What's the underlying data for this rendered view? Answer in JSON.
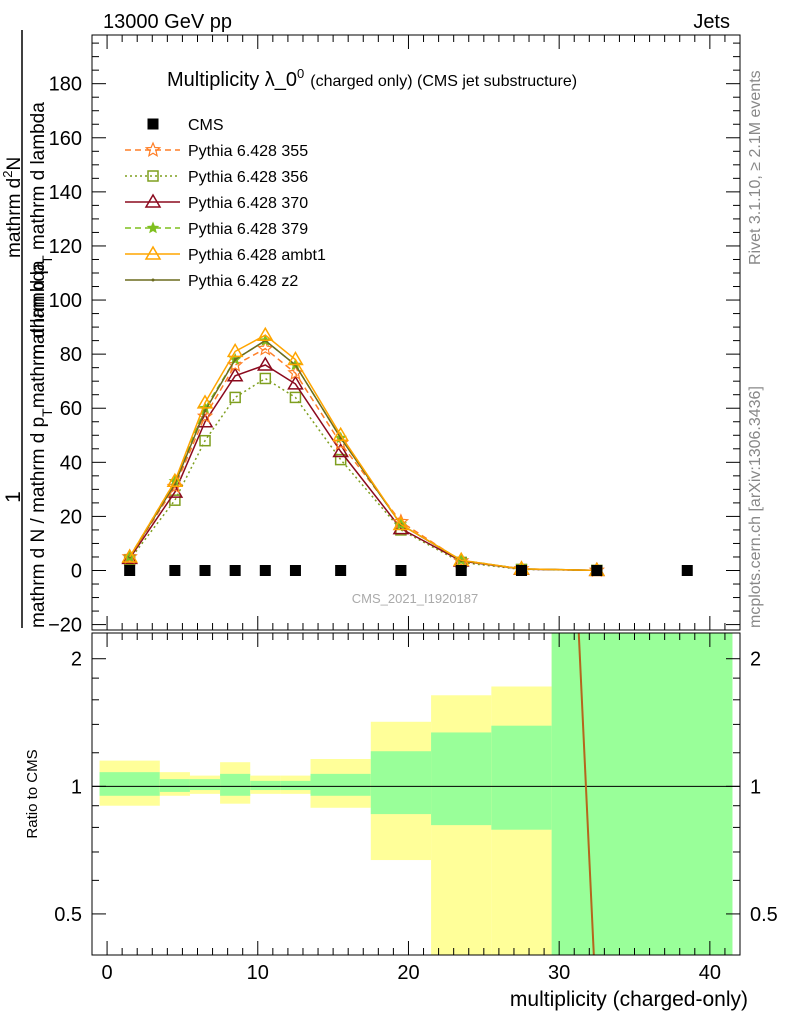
{
  "header": {
    "left": "13000 GeV pp",
    "right": "Jets"
  },
  "side_labels": {
    "rivet": "Rivet 3.1.10, ≥ 2.1M events",
    "mcplots": "mcplots.cern.ch [arXiv:1306.3436]"
  },
  "colors": {
    "cms": "#000000",
    "p355": "#ff7f27",
    "p356": "#7f9f1f",
    "p370": "#8b0a1e",
    "p379": "#7fbf1f",
    "ambt1": "#ffa500",
    "z2": "#6b6b1f",
    "band_yellow": "#ffff99",
    "band_green": "#99ff99"
  },
  "chart_data": [
    {
      "type": "line",
      "title": "Multiplicity λ_0",
      "title_sup": "0",
      "subtitle": "(charged only) (CMS jet substructure)",
      "ylabel_fraction_num": "1",
      "ylabel_fraction_den": "mathrm d N / mathrm d p",
      "ylabel_sub": "T",
      "ylabel_tail": "mathrm d lambda",
      "ylabel_num_extra": "mathrm d",
      "ylabel_num_sup": "2",
      "ylabel_num_N": "N",
      "ylabel_den2": "mathrm d p",
      "ylabel_den2_tail": " mathrm d lambda",
      "ylim": [
        -22,
        198
      ],
      "xlim": [
        -1,
        42
      ],
      "yticks": [
        -20,
        0,
        20,
        40,
        60,
        80,
        100,
        120,
        140,
        160,
        180
      ],
      "watermark": "CMS_2021_I1920187",
      "series": [
        {
          "name": "CMS",
          "x": [
            1.5,
            4.5,
            6.5,
            8.5,
            10.5,
            12.5,
            15.5,
            19.5,
            23.5,
            27.5,
            32.5,
            38.5
          ],
          "y": [
            0,
            0,
            0,
            0,
            0,
            0,
            0,
            0,
            0,
            0,
            0,
            0
          ]
        },
        {
          "name": "Pythia 6.428 355",
          "x": [
            1.5,
            4.5,
            6.5,
            8.5,
            10.5,
            12.5,
            15.5,
            19.5,
            23.5,
            27.5,
            32.5
          ],
          "y": [
            5,
            31,
            57,
            76,
            82,
            73,
            47,
            18,
            3.5,
            0.6,
            0.05
          ]
        },
        {
          "name": "Pythia 6.428 356",
          "x": [
            1.5,
            4.5,
            6.5,
            8.5,
            10.5,
            12.5,
            15.5,
            19.5,
            23.5,
            27.5,
            32.5
          ],
          "y": [
            4,
            26,
            48,
            64,
            71,
            64,
            41,
            15,
            3,
            0.4,
            0.05
          ]
        },
        {
          "name": "Pythia 6.428 370",
          "x": [
            1.5,
            4.5,
            6.5,
            8.5,
            10.5,
            12.5,
            15.5,
            19.5,
            23.5,
            27.5,
            32.5
          ],
          "y": [
            4.5,
            29,
            55,
            72,
            76,
            69,
            44,
            15.5,
            3.5,
            0.5,
            0.05
          ]
        },
        {
          "name": "Pythia 6.428 379",
          "x": [
            1.5,
            4.5,
            6.5,
            8.5,
            10.5,
            12.5,
            15.5,
            19.5,
            23.5,
            27.5,
            32.5
          ],
          "y": [
            5,
            33,
            60,
            78,
            85,
            76,
            49,
            17,
            3.8,
            0.6,
            0.05
          ]
        },
        {
          "name": "Pythia 6.428 ambt1",
          "x": [
            1.5,
            4.5,
            6.5,
            8.5,
            10.5,
            12.5,
            15.5,
            19.5,
            23.5,
            27.5,
            32.5
          ],
          "y": [
            5,
            33,
            62,
            81,
            87,
            78,
            50,
            17,
            3.8,
            0.6,
            0.05
          ]
        },
        {
          "name": "Pythia 6.428 z2",
          "x": [
            1.5,
            4.5,
            6.5,
            8.5,
            10.5,
            12.5,
            15.5,
            19.5,
            23.5,
            27.5,
            32.5
          ],
          "y": [
            5,
            32,
            59,
            78,
            85,
            76,
            49,
            17,
            3.7,
            0.6,
            0.05
          ]
        }
      ]
    },
    {
      "type": "area",
      "ylabel": "Ratio to CMS",
      "xlabel": "multiplicity (charged-only)",
      "xlim": [
        -1,
        42
      ],
      "ylim": [
        0.4,
        2.3
      ],
      "yticks": [
        0.5,
        1,
        2
      ],
      "xticks": [
        0,
        10,
        20,
        30,
        40
      ],
      "reference_line": 1,
      "bands": [
        {
          "x0": -0.5,
          "x1": 3.5,
          "yellow": [
            0.9,
            1.15
          ],
          "green": [
            0.95,
            1.08
          ]
        },
        {
          "x0": 3.5,
          "x1": 5.5,
          "yellow": [
            0.95,
            1.08
          ],
          "green": [
            0.97,
            1.04
          ]
        },
        {
          "x0": 5.5,
          "x1": 7.5,
          "yellow": [
            0.96,
            1.06
          ],
          "green": [
            0.98,
            1.04
          ]
        },
        {
          "x0": 7.5,
          "x1": 9.5,
          "yellow": [
            0.91,
            1.14
          ],
          "green": [
            0.95,
            1.07
          ]
        },
        {
          "x0": 9.5,
          "x1": 11.5,
          "yellow": [
            0.96,
            1.06
          ],
          "green": [
            0.98,
            1.03
          ]
        },
        {
          "x0": 11.5,
          "x1": 13.5,
          "yellow": [
            0.96,
            1.06
          ],
          "green": [
            0.98,
            1.03
          ]
        },
        {
          "x0": 13.5,
          "x1": 17.5,
          "yellow": [
            0.89,
            1.16
          ],
          "green": [
            0.95,
            1.07
          ]
        },
        {
          "x0": 17.5,
          "x1": 21.5,
          "yellow": [
            0.67,
            1.42
          ],
          "green": [
            0.86,
            1.21
          ]
        },
        {
          "x0": 21.5,
          "x1": 25.5,
          "yellow": [
            0.38,
            1.64
          ],
          "green": [
            0.81,
            1.34
          ]
        },
        {
          "x0": 25.5,
          "x1": 29.5,
          "yellow": [
            0.36,
            1.72
          ],
          "green": [
            0.79,
            1.39
          ]
        },
        {
          "x0": 29.5,
          "x1": 41.5,
          "yellow": [
            0.36,
            2.3
          ],
          "green": [
            0.36,
            2.3
          ]
        }
      ],
      "ratio_line": {
        "x": [
          31.3,
          32.3
        ],
        "y": [
          2.3,
          0.36
        ]
      }
    }
  ]
}
